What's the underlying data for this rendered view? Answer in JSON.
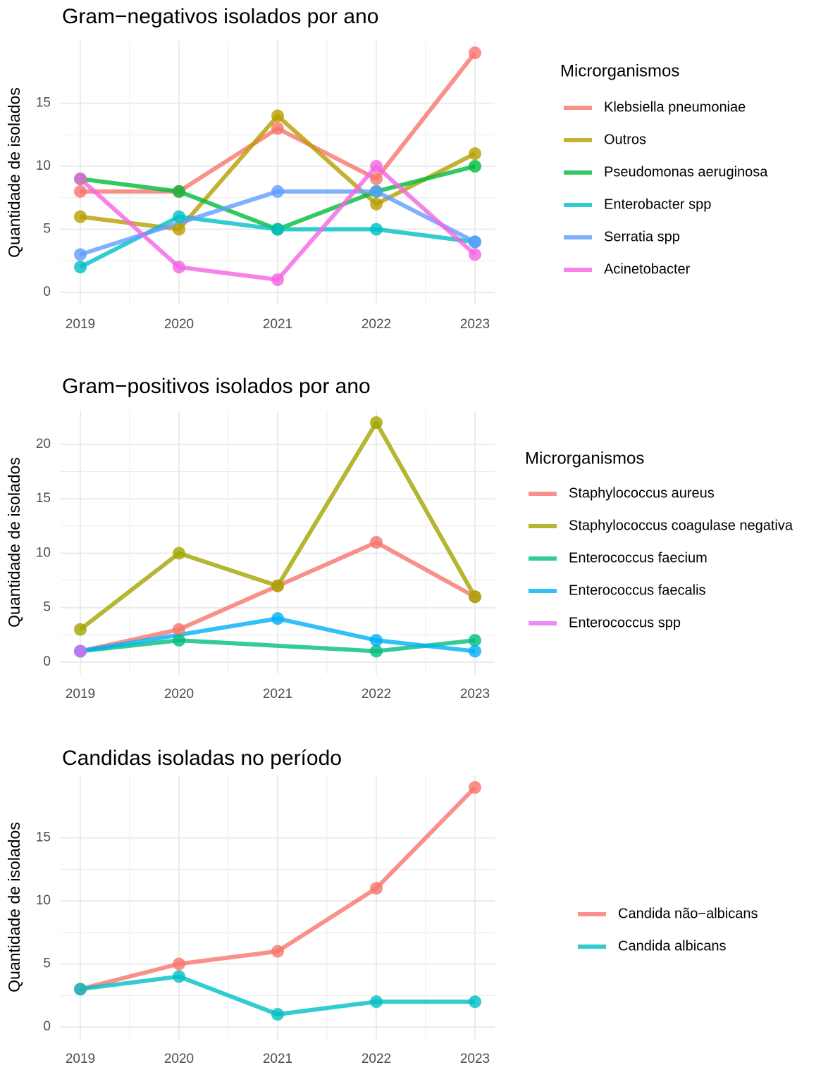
{
  "chart_data": [
    {
      "type": "line",
      "title": "Gram−negativos isolados por ano",
      "y_label": "Quantidade de isolados",
      "legend_title": "Microrganismos",
      "xlim": [
        2018.8,
        2023.2
      ],
      "xticks": [
        2019,
        2020,
        2021,
        2022,
        2023
      ],
      "ylim": [
        -0.95,
        19.95
      ],
      "yticks": [
        0,
        5,
        10,
        15
      ],
      "grid": true,
      "series": [
        {
          "name": "Klebsiella pneumoniae",
          "color": "#F8766D",
          "x": [
            2019,
            2020,
            2021,
            2022,
            2023
          ],
          "values": [
            8,
            8,
            13,
            9,
            19
          ]
        },
        {
          "name": "Outros",
          "color": "#B79F00",
          "x": [
            2019,
            2020,
            2021,
            2022,
            2023
          ],
          "values": [
            6,
            5,
            14,
            7,
            11
          ]
        },
        {
          "name": "Pseudomonas aeruginosa",
          "color": "#00BA38",
          "x": [
            2019,
            2020,
            2021,
            2022,
            2023
          ],
          "values": [
            9,
            8,
            5,
            8,
            10
          ]
        },
        {
          "name": "Enterobacter spp",
          "color": "#00BFC4",
          "x": [
            2019,
            2020,
            2021,
            2022,
            2023
          ],
          "values": [
            2,
            6,
            5,
            5,
            4
          ]
        },
        {
          "name": "Serratia spp",
          "color": "#619CFF",
          "x": [
            2019,
            2021,
            2022,
            2023
          ],
          "values": [
            3,
            8,
            8,
            4
          ]
        },
        {
          "name": "Acinetobacter",
          "color": "#F564E3",
          "x": [
            2019,
            2020,
            2021,
            2022,
            2023
          ],
          "values": [
            9,
            2,
            1,
            10,
            3
          ]
        }
      ]
    },
    {
      "type": "line",
      "title": "Gram−positivos isolados por ano",
      "y_label": "Quantidade de isolados",
      "legend_title": "Microrganismos",
      "xlim": [
        2018.8,
        2023.2
      ],
      "xticks": [
        2019,
        2020,
        2021,
        2022,
        2023
      ],
      "ylim": [
        -1.1,
        23.1
      ],
      "yticks": [
        0,
        5,
        10,
        15,
        20
      ],
      "grid": true,
      "series": [
        {
          "name": "Staphylococcus aureus",
          "color": "#F8766D",
          "x": [
            2019,
            2020,
            2021,
            2022,
            2023
          ],
          "values": [
            1,
            3,
            7,
            11,
            6
          ]
        },
        {
          "name": "Staphylococcus coagulase negativa",
          "color": "#A3A500",
          "x": [
            2019,
            2020,
            2021,
            2022,
            2023
          ],
          "values": [
            3,
            10,
            7,
            22,
            6
          ]
        },
        {
          "name": "Enterococcus faecium",
          "color": "#00BF7D",
          "x": [
            2019,
            2020,
            2022,
            2023
          ],
          "values": [
            1,
            2,
            1,
            2
          ]
        },
        {
          "name": "Enterococcus faecalis",
          "color": "#00B0F6",
          "x": [
            2019,
            2021,
            2022,
            2023
          ],
          "values": [
            1,
            4,
            2,
            1
          ]
        },
        {
          "name": "Enterococcus spp",
          "color": "#E76BF3",
          "x": [
            2019
          ],
          "values": [
            1
          ]
        }
      ]
    },
    {
      "type": "line",
      "title": "Candidas isoladas no período",
      "y_label": "Quantidade de isolados",
      "xlim": [
        2018.8,
        2023.2
      ],
      "xticks": [
        2019,
        2020,
        2021,
        2022,
        2023
      ],
      "ylim": [
        -0.95,
        19.95
      ],
      "yticks": [
        0,
        5,
        10,
        15
      ],
      "grid": true,
      "series": [
        {
          "name": "Candida não−albicans",
          "color": "#F8766D",
          "x": [
            2019,
            2020,
            2021,
            2022,
            2023
          ],
          "values": [
            3,
            5,
            6,
            11,
            19
          ]
        },
        {
          "name": "Candida albicans",
          "color": "#00BFC4",
          "x": [
            2019,
            2020,
            2021,
            2022,
            2023
          ],
          "values": [
            3,
            4,
            1,
            2,
            2
          ]
        }
      ]
    }
  ]
}
